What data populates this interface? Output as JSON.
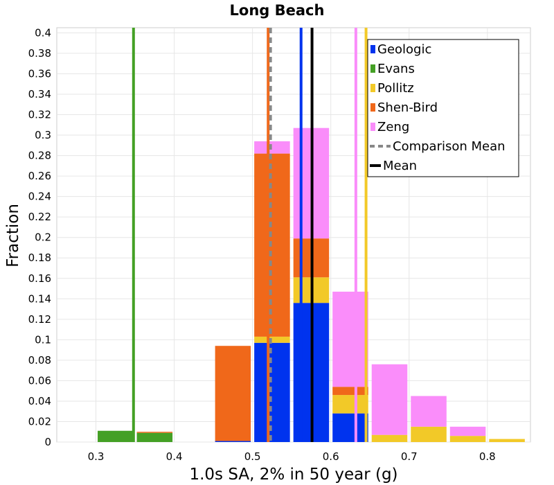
{
  "chart_data": {
    "type": "bar",
    "title": "Long Beach",
    "xlabel": "1.0s SA, 2% in 50 year (g)",
    "ylabel": "Fraction",
    "xlim": [
      0.25,
      0.855
    ],
    "ylim": [
      0,
      0.405
    ],
    "x_ticks": [
      "0.3",
      "0.4",
      "0.5",
      "0.6",
      "0.7",
      "0.8"
    ],
    "y_ticks": [
      "0",
      "0.02",
      "0.04",
      "0.06",
      "0.08",
      "0.1",
      "0.12",
      "0.14",
      "0.16",
      "0.18",
      "0.2",
      "0.22",
      "0.24",
      "0.26",
      "0.28",
      "0.3",
      "0.32",
      "0.34",
      "0.36",
      "0.38",
      "0.4"
    ],
    "grid": true,
    "stacked": true,
    "bin_width": 0.05,
    "bins": [
      0.325,
      0.375,
      0.475,
      0.525,
      0.575,
      0.625,
      0.675,
      0.725,
      0.775,
      0.825
    ],
    "series": [
      {
        "name": "Geologic",
        "color": "#0033ee",
        "values": [
          0,
          0,
          0.001,
          0.097,
          0.136,
          0.028,
          0,
          0,
          0,
          0
        ]
      },
      {
        "name": "Evans",
        "color": "#44a025",
        "values": [
          0.011,
          0.009,
          0,
          0,
          0,
          0,
          0,
          0,
          0,
          0
        ]
      },
      {
        "name": "Pollitz",
        "color": "#f2c928",
        "values": [
          0,
          0,
          0,
          0.006,
          0.025,
          0.018,
          0.007,
          0.015,
          0.006,
          0.003
        ]
      },
      {
        "name": "Shen-Bird",
        "color": "#f0681a",
        "values": [
          0,
          0.001,
          0.093,
          0.179,
          0.038,
          0.008,
          0,
          0,
          0,
          0
        ]
      },
      {
        "name": "Zeng",
        "color": "#fa8dfa",
        "values": [
          0,
          0,
          0,
          0.012,
          0.108,
          0.093,
          0.069,
          0.03,
          0.009,
          0
        ]
      }
    ],
    "vertical_lines": [
      {
        "series": "Evans",
        "x": 0.348,
        "color": "#44a025",
        "style": "solid"
      },
      {
        "series": "Shen-Bird",
        "x": 0.52,
        "color": "#f0681a",
        "style": "solid"
      },
      {
        "series": "Geologic",
        "x": 0.562,
        "color": "#0033ee",
        "style": "solid"
      },
      {
        "series": "Zeng",
        "x": 0.632,
        "color": "#fa8dfa",
        "style": "solid"
      },
      {
        "series": "Pollitz",
        "x": 0.645,
        "color": "#f2c928",
        "style": "solid"
      },
      {
        "series": "Comparison Mean",
        "x": 0.523,
        "color": "#888888",
        "style": "dashed"
      },
      {
        "series": "Mean",
        "x": 0.576,
        "color": "#000000",
        "style": "solid"
      }
    ],
    "legend": {
      "position": "top-right",
      "entries": [
        {
          "label": "Geologic",
          "color": "#0033ee",
          "marker": "box"
        },
        {
          "label": "Evans",
          "color": "#44a025",
          "marker": "box"
        },
        {
          "label": "Pollitz",
          "color": "#f2c928",
          "marker": "box"
        },
        {
          "label": "Shen-Bird",
          "color": "#f0681a",
          "marker": "box"
        },
        {
          "label": "Zeng",
          "color": "#fa8dfa",
          "marker": "box"
        },
        {
          "label": "Comparison Mean",
          "color": "#888888",
          "marker": "dashed"
        },
        {
          "label": "Mean",
          "color": "#000000",
          "marker": "solid"
        }
      ]
    }
  }
}
